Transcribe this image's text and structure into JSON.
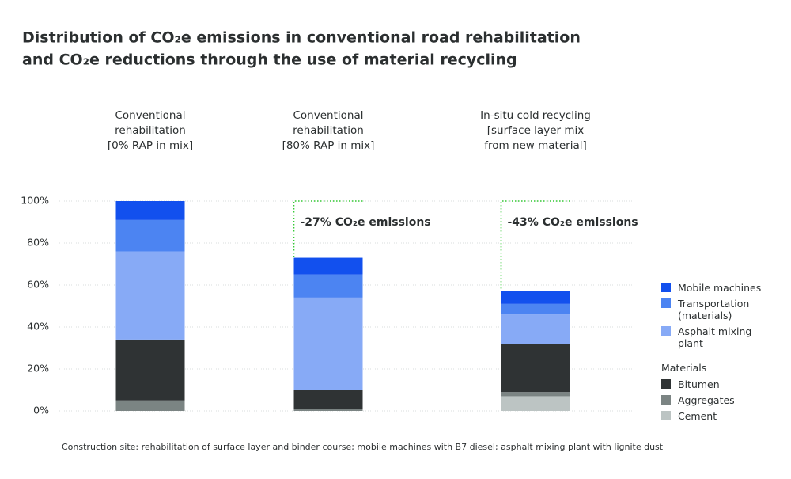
{
  "chart_data": {
    "type": "bar",
    "stacked": true,
    "title": [
      "Distribution of CO₂e emissions in conventional road rehabilitation",
      "and CO₂e reductions through the use of material recycling"
    ],
    "categories": [
      [
        "Conventional",
        "rehabilitation",
        "[0% RAP in mix]"
      ],
      [
        "Conventional",
        "rehabilitation",
        "[80% RAP in mix]"
      ],
      [
        "In-situ cold recycling",
        "[surface layer mix",
        "from new material]"
      ]
    ],
    "series": [
      {
        "name": "Cement",
        "group": "Materials",
        "color": "#bcc4c3",
        "values": [
          0,
          0,
          7
        ]
      },
      {
        "name": "Aggregates",
        "group": "Materials",
        "color": "#7b8483",
        "values": [
          5,
          1,
          2
        ]
      },
      {
        "name": "Bitumen",
        "group": "Materials",
        "color": "#2f3334",
        "values": [
          29,
          9,
          23
        ]
      },
      {
        "name": "Asphalt mixing plant",
        "color": "#87aaf6",
        "values": [
          42,
          44,
          14
        ]
      },
      {
        "name": "Transportation (materials)",
        "color": "#4c84f2",
        "values": [
          15,
          11,
          5
        ]
      },
      {
        "name": "Mobile machines",
        "color": "#1250ee",
        "values": [
          9,
          8,
          6
        ]
      }
    ],
    "annotations": [
      null,
      "-27% CO₂e emissions",
      "-43% CO₂e emissions"
    ],
    "annotation_color": "#35c935",
    "ylim": [
      0,
      100
    ],
    "yticks": [
      {
        "value": 0,
        "label": "0%"
      },
      {
        "value": 20,
        "label": "20%"
      },
      {
        "value": 40,
        "label": "40%"
      },
      {
        "value": 60,
        "label": "60%"
      },
      {
        "value": 80,
        "label": "80%"
      },
      {
        "value": 100,
        "label": "100%"
      }
    ],
    "grid": true,
    "note": "Construction site: rehabilitation of surface layer and binder course; mobile machines with B7 diesel; asphalt mixing plant with lignite dust"
  }
}
